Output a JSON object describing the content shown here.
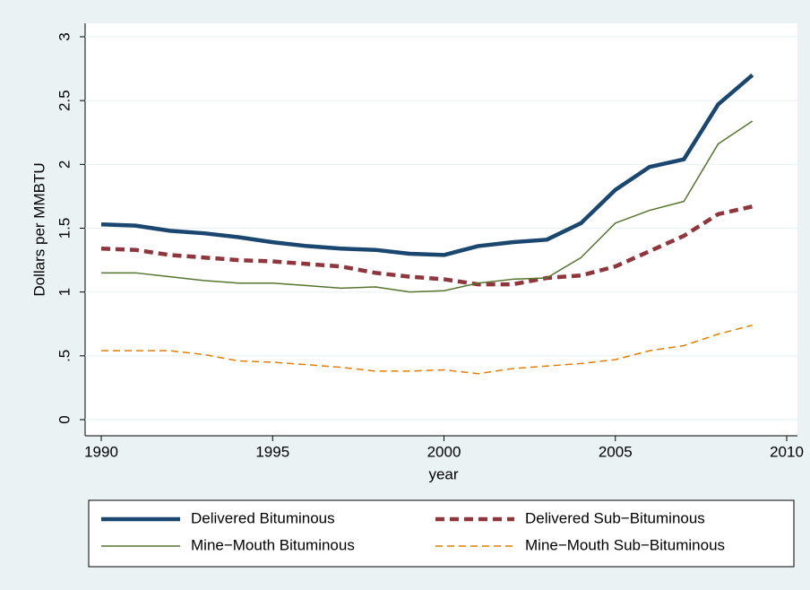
{
  "chart_data": {
    "type": "line",
    "x_label": "year",
    "y_label": "Dollars per MMBTU",
    "x": [
      1990,
      1991,
      1992,
      1993,
      1994,
      1995,
      1996,
      1997,
      1998,
      1999,
      2000,
      2001,
      2002,
      2003,
      2004,
      2005,
      2006,
      2007,
      2008,
      2009
    ],
    "xlim": [
      1990,
      2010
    ],
    "xticks": [
      1990,
      1995,
      2000,
      2005,
      2010
    ],
    "ylim": [
      0,
      3
    ],
    "yticks": [
      0,
      {
        "value": 0.5,
        "label": ".5"
      },
      1,
      1.5,
      2,
      2.5,
      3
    ],
    "grid": true,
    "series": [
      {
        "name": "Delivered Bituminous",
        "color": "#1a476f",
        "width": 4.5,
        "dash": "none",
        "values": [
          1.53,
          1.52,
          1.48,
          1.46,
          1.43,
          1.39,
          1.36,
          1.34,
          1.33,
          1.3,
          1.29,
          1.36,
          1.39,
          1.41,
          1.54,
          1.8,
          1.98,
          2.04,
          2.47,
          2.7
        ]
      },
      {
        "name": "Delivered Sub−Bituminous",
        "color": "#90353b",
        "width": 4.5,
        "dash": "10,6",
        "values": [
          1.34,
          1.33,
          1.29,
          1.27,
          1.25,
          1.24,
          1.22,
          1.2,
          1.15,
          1.12,
          1.1,
          1.06,
          1.06,
          1.11,
          1.13,
          1.2,
          1.32,
          1.44,
          1.61,
          1.67
        ]
      },
      {
        "name": "Mine−Mouth Bituminous",
        "color": "#55752f",
        "width": 1.5,
        "dash": "none",
        "values": [
          1.15,
          1.15,
          1.12,
          1.09,
          1.07,
          1.07,
          1.05,
          1.03,
          1.04,
          1.0,
          1.01,
          1.07,
          1.1,
          1.11,
          1.27,
          1.54,
          1.64,
          1.71,
          2.16,
          2.34
        ]
      },
      {
        "name": "Mine−Mouth Sub−Bituminous",
        "color": "#e37e00",
        "width": 1.5,
        "dash": "8,5",
        "values": [
          0.54,
          0.54,
          0.54,
          0.51,
          0.46,
          0.45,
          0.43,
          0.41,
          0.38,
          0.38,
          0.39,
          0.36,
          0.4,
          0.42,
          0.44,
          0.47,
          0.54,
          0.58,
          0.67,
          0.74
        ]
      }
    ]
  }
}
